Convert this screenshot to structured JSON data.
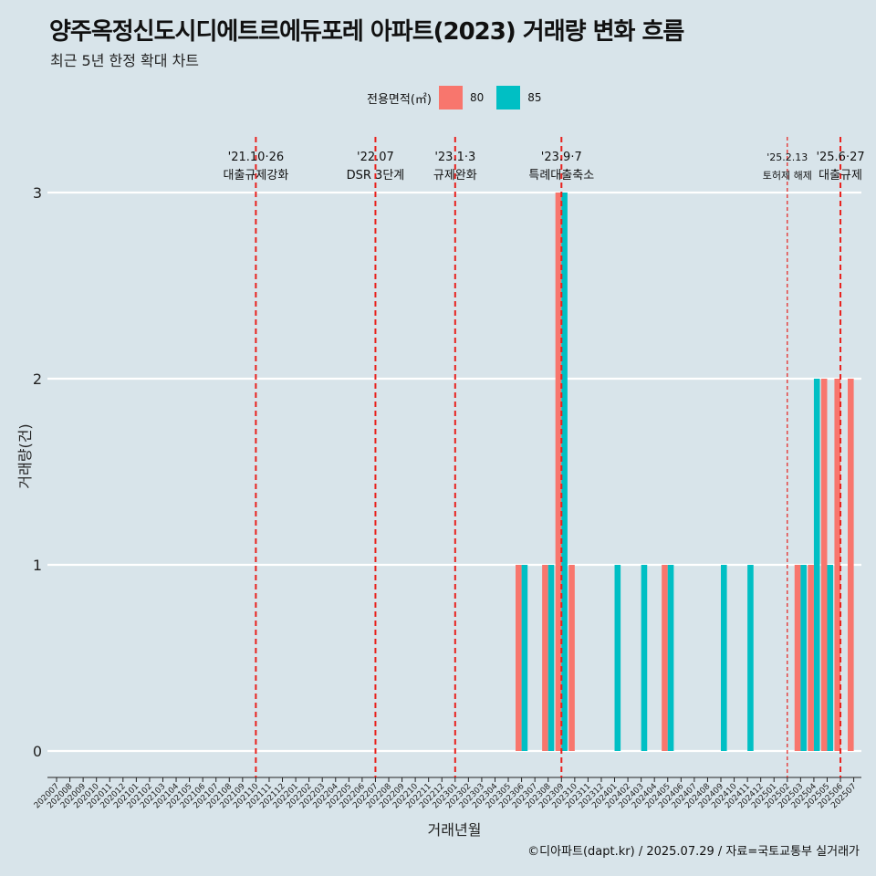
{
  "title": "양주옥정신도시디에트르에듀포레 아파트(2023) 거래량 변화 흐름",
  "subtitle": "최근 5년 한정 확대 차트",
  "caption": "©디아파트(dapt.kr) / 2025.07.29 / 자료=국토교통부 실거래가",
  "legend": {
    "title": "전용면적(㎡)",
    "items": [
      {
        "label": "80",
        "color": "#f8766d"
      },
      {
        "label": "85",
        "color": "#00bfc4"
      }
    ]
  },
  "chart_data": {
    "type": "bar",
    "xlabel": "거래년월",
    "ylabel": "거래량(건)",
    "ylim": [
      0,
      3
    ],
    "yticks": [
      0,
      1,
      2,
      3
    ],
    "categories": [
      "202007",
      "202008",
      "202009",
      "202010",
      "202011",
      "202012",
      "202101",
      "202102",
      "202103",
      "202104",
      "202105",
      "202106",
      "202107",
      "202108",
      "202109",
      "202110",
      "202111",
      "202112",
      "202201",
      "202202",
      "202203",
      "202204",
      "202205",
      "202206",
      "202207",
      "202208",
      "202209",
      "202210",
      "202211",
      "202212",
      "202301",
      "202302",
      "202303",
      "202304",
      "202305",
      "202306",
      "202307",
      "202308",
      "202309",
      "202310",
      "202311",
      "202312",
      "202401",
      "202402",
      "202403",
      "202404",
      "202405",
      "202406",
      "202407",
      "202408",
      "202409",
      "202410",
      "202411",
      "202412",
      "202501",
      "202502",
      "202503",
      "202504",
      "202505",
      "202506",
      "202507"
    ],
    "series": [
      {
        "name": "80",
        "color": "#f8766d",
        "values": [
          0,
          0,
          0,
          0,
          0,
          0,
          0,
          0,
          0,
          0,
          0,
          0,
          0,
          0,
          0,
          0,
          0,
          0,
          0,
          0,
          0,
          0,
          0,
          0,
          0,
          0,
          0,
          0,
          0,
          0,
          0,
          0,
          0,
          0,
          0,
          1,
          0,
          1,
          3,
          1,
          0,
          0,
          0,
          0,
          0,
          0,
          1,
          0,
          0,
          0,
          0,
          0,
          0,
          0,
          0,
          0,
          1,
          1,
          2,
          2,
          2
        ]
      },
      {
        "name": "85",
        "color": "#00bfc4",
        "values": [
          0,
          0,
          0,
          0,
          0,
          0,
          0,
          0,
          0,
          0,
          0,
          0,
          0,
          0,
          0,
          0,
          0,
          0,
          0,
          0,
          0,
          0,
          0,
          0,
          0,
          0,
          0,
          0,
          0,
          0,
          0,
          0,
          0,
          0,
          0,
          1,
          0,
          1,
          3,
          0,
          0,
          0,
          1,
          0,
          1,
          0,
          1,
          0,
          0,
          0,
          1,
          0,
          1,
          0,
          0,
          0,
          1,
          2,
          1,
          0,
          0
        ]
      }
    ],
    "annotations": [
      {
        "date": "202110",
        "line1": "'21.10·26",
        "line2": "대출규제강화",
        "style": "thick"
      },
      {
        "date": "202207",
        "line1": "'22.07",
        "line2": "DSR 3단계",
        "style": "thick"
      },
      {
        "date": "202301",
        "line1": "'23.1·3",
        "line2": "규제완화",
        "style": "thick"
      },
      {
        "date": "202309",
        "line1": "'23.9·7",
        "line2": "특례대출축소",
        "style": "thick"
      },
      {
        "date": "202502",
        "line1": "'25.2.13",
        "line2": "토허제 해제",
        "style": "thin"
      },
      {
        "date": "202506",
        "line1": "'25.6·27",
        "line2": "대출규제",
        "style": "thick"
      }
    ]
  }
}
